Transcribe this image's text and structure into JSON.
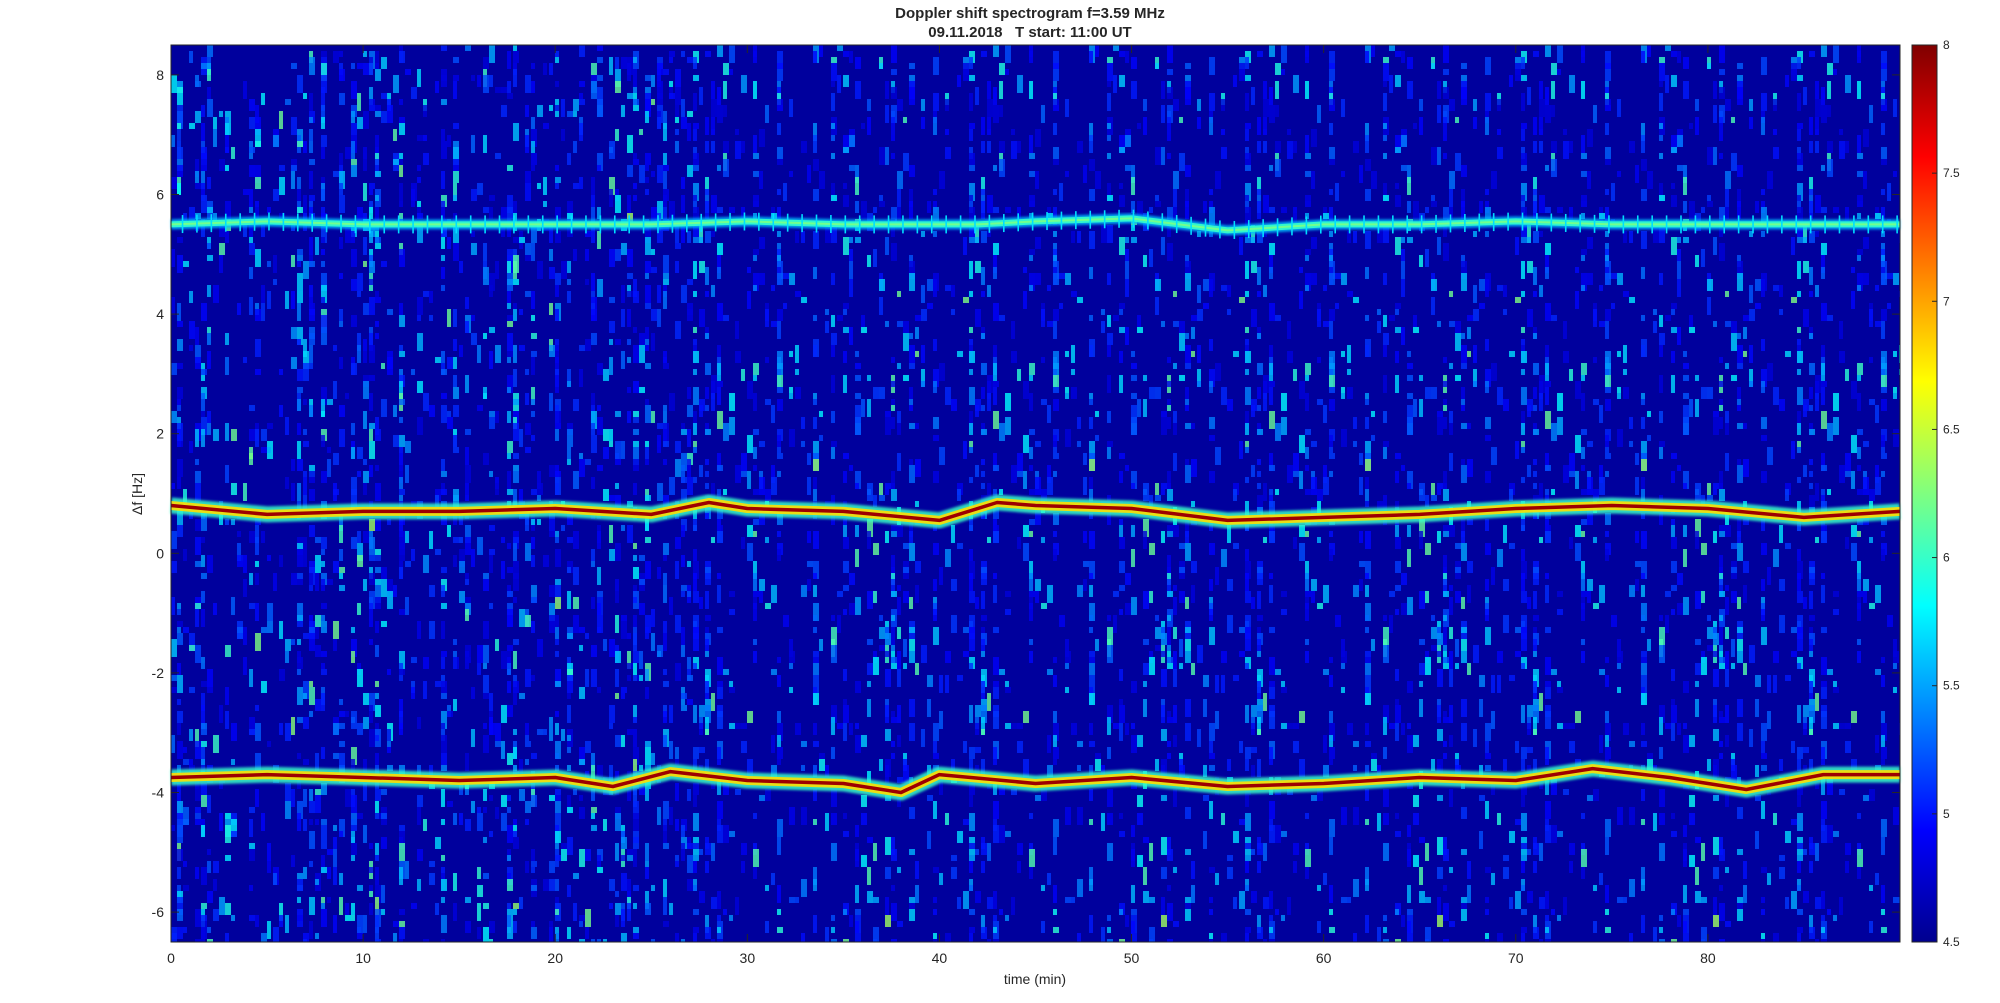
{
  "chart_data": {
    "type": "heatmap",
    "title": "Doppler shift spectrogram f=3.59 MHz",
    "subtitle": "09.11.2018   T start: 11:00 UT",
    "xlabel": "time (min)",
    "ylabel": "Δf [Hz]",
    "xlim": [
      0,
      90
    ],
    "ylim": [
      -6.5,
      8.5
    ],
    "xticks": [
      0,
      10,
      20,
      30,
      40,
      50,
      60,
      70,
      80
    ],
    "yticks": [
      -6,
      -4,
      -2,
      0,
      2,
      4,
      6,
      8
    ],
    "colormap": "jet",
    "colorbar": {
      "clim": [
        4.5,
        8
      ],
      "ticks": [
        4.5,
        5,
        5.5,
        6,
        6.5,
        7,
        7.5,
        8
      ],
      "location": "right"
    },
    "background_level": 4.6,
    "series": [
      {
        "x": [
          0,
          5,
          10,
          15,
          20,
          25,
          30,
          35,
          40,
          42,
          45,
          50,
          55,
          60,
          65,
          70,
          75,
          80,
          85,
          90
        ],
        "y": [
          5.5,
          5.55,
          5.5,
          5.5,
          5.5,
          5.5,
          5.55,
          5.5,
          5.5,
          5.5,
          5.55,
          5.6,
          5.4,
          5.5,
          5.5,
          5.55,
          5.5,
          5.5,
          5.5,
          5.5
        ],
        "peak_level": 6.2
      },
      {
        "x": [
          0,
          5,
          10,
          15,
          20,
          25,
          28,
          30,
          35,
          40,
          43,
          45,
          50,
          55,
          60,
          65,
          70,
          75,
          80,
          85,
          90
        ],
        "y": [
          0.8,
          0.65,
          0.7,
          0.7,
          0.75,
          0.65,
          0.85,
          0.75,
          0.7,
          0.55,
          0.85,
          0.8,
          0.75,
          0.55,
          0.6,
          0.65,
          0.75,
          0.8,
          0.75,
          0.6,
          0.7
        ],
        "peak_level": 7.9
      },
      {
        "x": [
          0,
          5,
          10,
          15,
          20,
          23,
          26,
          30,
          35,
          38,
          40,
          45,
          50,
          55,
          60,
          65,
          70,
          74,
          78,
          82,
          86,
          90
        ],
        "y": [
          -3.75,
          -3.7,
          -3.75,
          -3.8,
          -3.75,
          -3.9,
          -3.65,
          -3.8,
          -3.85,
          -4.0,
          -3.7,
          -3.85,
          -3.75,
          -3.9,
          -3.85,
          -3.75,
          -3.8,
          -3.6,
          -3.75,
          -3.95,
          -3.7,
          -3.7
        ],
        "peak_level": 7.9
      }
    ]
  }
}
